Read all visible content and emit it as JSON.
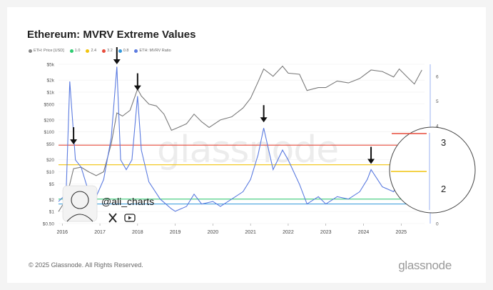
{
  "title": "Ethereum: MVRV Extreme Values",
  "legend": [
    {
      "label": "ETH: Price [USD]",
      "color": "#888888"
    },
    {
      "label": "1.0",
      "color": "#2ecc71"
    },
    {
      "label": "2.4",
      "color": "#f1c40f"
    },
    {
      "label": "3.2",
      "color": "#e74c3c"
    },
    {
      "label": "0.8",
      "color": "#3498db"
    },
    {
      "label": "ETH: MVRV Ratio",
      "color": "#5b7be0"
    }
  ],
  "watermark": "glassnode",
  "handle": "@ali_charts",
  "footer": {
    "copyright": "© 2025 Glassnode. All Rights Reserved.",
    "brand": "glassnode"
  },
  "icons": [
    "x-icon",
    "youtube-icon",
    "avatar"
  ],
  "chart_data": {
    "type": "line",
    "title": "Ethereum: MVRV Extreme Values",
    "x_ticks": [
      "2016",
      "2017",
      "2018",
      "2019",
      "2020",
      "2021",
      "2022",
      "2023",
      "2024",
      "2025"
    ],
    "y_left_ticks": [
      "$5k",
      "$2k",
      "$1k",
      "$500",
      "$200",
      "$100",
      "$50",
      "$20",
      "$10",
      "$5",
      "$2",
      "$1",
      "$0.50"
    ],
    "y_left_scale": "log",
    "y_right_ticks": [
      "6",
      "5",
      "4",
      "3",
      "2",
      "1",
      "0"
    ],
    "series": [
      {
        "name": "ETH: Price [USD]",
        "color": "#7a7a7a",
        "x": [
          2015.9,
          2016.1,
          2016.3,
          2016.5,
          2016.7,
          2016.9,
          2017.1,
          2017.3,
          2017.45,
          2017.6,
          2017.8,
          2018.0,
          2018.1,
          2018.3,
          2018.5,
          2018.7,
          2018.9,
          2019.0,
          2019.3,
          2019.5,
          2019.7,
          2019.9,
          2020.2,
          2020.5,
          2020.8,
          2021.0,
          2021.2,
          2021.35,
          2021.6,
          2021.85,
          2022.0,
          2022.3,
          2022.5,
          2022.8,
          2023.0,
          2023.3,
          2023.6,
          2023.9,
          2024.2,
          2024.5,
          2024.8,
          2024.95,
          2025.2,
          2025.35,
          2025.55
        ],
        "values": [
          1,
          2,
          12,
          13,
          10,
          8,
          10,
          50,
          300,
          250,
          350,
          1200,
          800,
          500,
          450,
          280,
          110,
          120,
          160,
          280,
          180,
          130,
          200,
          240,
          400,
          700,
          1800,
          3800,
          2500,
          4500,
          3000,
          2800,
          1100,
          1300,
          1300,
          1900,
          1700,
          2200,
          3600,
          3300,
          2400,
          3800,
          2200,
          1600,
          3600
        ]
      },
      {
        "name": "ETH: MVRV Ratio",
        "color": "#5b7be0",
        "x": [
          2015.9,
          2016.1,
          2016.2,
          2016.35,
          2016.5,
          2016.7,
          2016.9,
          2017.1,
          2017.3,
          2017.45,
          2017.55,
          2017.7,
          2017.85,
          2018.0,
          2018.1,
          2018.3,
          2018.6,
          2018.9,
          2019.0,
          2019.3,
          2019.5,
          2019.7,
          2020.0,
          2020.2,
          2020.5,
          2020.8,
          2021.0,
          2021.2,
          2021.35,
          2021.6,
          2021.85,
          2022.0,
          2022.3,
          2022.5,
          2022.8,
          2023.0,
          2023.3,
          2023.6,
          2023.9,
          2024.1,
          2024.2,
          2024.5,
          2024.8,
          2025.0,
          2025.2,
          2025.35,
          2025.55
        ],
        "values": [
          0.9,
          1.2,
          5.8,
          2.6,
          2.3,
          1.3,
          1.1,
          1.8,
          3.5,
          6.4,
          2.6,
          2.2,
          2.6,
          5.2,
          3.0,
          1.7,
          1.0,
          0.6,
          0.5,
          0.7,
          1.2,
          0.8,
          0.9,
          0.7,
          1.0,
          1.3,
          1.8,
          2.8,
          3.9,
          2.2,
          3.0,
          2.6,
          1.6,
          0.8,
          1.1,
          0.8,
          1.1,
          1.0,
          1.3,
          1.8,
          2.2,
          1.5,
          1.3,
          1.9,
          1.1,
          0.8,
          1.4
        ]
      }
    ],
    "thresholds": [
      {
        "label": "3.2",
        "value": 3.2,
        "color": "#e74c3c"
      },
      {
        "label": "2.4",
        "value": 2.4,
        "color": "#f1c40f"
      },
      {
        "label": "1.0",
        "value": 1.0,
        "color": "#2ecc71"
      },
      {
        "label": "0.8",
        "value": 0.8,
        "color": "#3498db"
      }
    ],
    "annotations": {
      "arrows_at_x": [
        2016.3,
        2017.45,
        2018.0,
        2021.35,
        2024.2
      ],
      "zoom_labels": [
        "3",
        "2"
      ]
    },
    "xlim": [
      2015.9,
      2025.62
    ],
    "y_right_lim": [
      0,
      6.5
    ]
  }
}
